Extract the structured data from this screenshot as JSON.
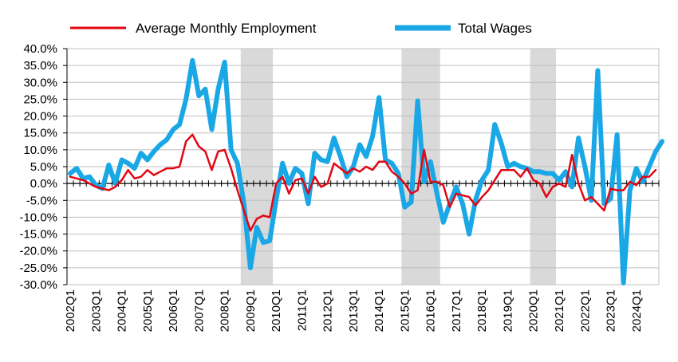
{
  "chart_data": {
    "type": "line",
    "title": "",
    "xlabel": "",
    "ylabel": "",
    "ylim": [
      -30,
      40
    ],
    "yticks": [
      "40.0%",
      "35.0%",
      "30.0%",
      "25.0%",
      "20.0%",
      "15.0%",
      "10.0%",
      "5.0%",
      "0.0%",
      "-5.0%",
      "-10.0%",
      "-15.0%",
      "-20.0%",
      "-25.0%",
      "-30.0%"
    ],
    "ytick_values": [
      40,
      35,
      30,
      25,
      20,
      15,
      10,
      5,
      0,
      -5,
      -10,
      -15,
      -20,
      -25,
      -30
    ],
    "xtick_labels": [
      "2002Q1",
      "2003Q1",
      "2004Q1",
      "2005Q1",
      "2006Q1",
      "2007Q1",
      "2008Q1",
      "2009Q1",
      "2010Q1",
      "2011Q1",
      "2012Q1",
      "2013Q1",
      "2014Q1",
      "2015Q1",
      "2016Q1",
      "2017Q1",
      "2018Q1",
      "2019Q1",
      "2020Q1",
      "2021Q1",
      "2022Q1",
      "2023Q1",
      "2024Q1"
    ],
    "x_start": "2002Q1",
    "grid": "horizontal",
    "legend_position": "top",
    "recessions": [
      {
        "start": "2008Q4",
        "end": "2009Q4"
      },
      {
        "start": "2015Q1",
        "end": "2016Q2"
      },
      {
        "start": "2020Q1",
        "end": "2020Q4"
      }
    ],
    "recession_color": "#d9d9d9",
    "series": [
      {
        "name": "Average Monthly Employment",
        "color": "#e30613",
        "values": [
          2,
          1.5,
          1,
          0,
          -1,
          -1.5,
          -2,
          -1,
          1,
          4,
          1.5,
          2,
          4,
          2.5,
          3.5,
          4.5,
          4.5,
          5,
          12.5,
          14.5,
          11,
          9.5,
          4,
          9.5,
          10,
          4.5,
          -2,
          -8,
          -14,
          -10.5,
          -9.5,
          -10,
          0,
          2,
          -3,
          1,
          1.5,
          -3,
          2,
          -1,
          0,
          6,
          4.5,
          3,
          4.5,
          3.5,
          5,
          4,
          6.5,
          6.5,
          3.5,
          2,
          0,
          -3,
          -2,
          10,
          0.5,
          0.5,
          -0.5,
          -7,
          -3,
          -3.5,
          -4,
          -6.5,
          -4,
          -2,
          1,
          4,
          4,
          4,
          2,
          4.5,
          1,
          0,
          -4,
          -1,
          0,
          -1,
          8.5,
          0,
          -5,
          -4,
          -6,
          -8,
          -1.5,
          -2,
          -2,
          0.5,
          -0.5,
          2,
          2,
          4
        ]
      },
      {
        "name": "Total Wages",
        "color": "#1aa7e6",
        "values": [
          3,
          4.5,
          1.5,
          2,
          -0.5,
          -1.5,
          5.5,
          0,
          7,
          6,
          4.5,
          9,
          7,
          9.5,
          11.5,
          13,
          16,
          17.5,
          25,
          36.5,
          26,
          28,
          16,
          28,
          36,
          10,
          6,
          -6,
          -25,
          -13,
          -17.5,
          -17,
          -5,
          6,
          0,
          4.5,
          3,
          -6,
          9,
          7,
          6.5,
          13.5,
          8,
          2,
          5,
          11.5,
          8,
          14,
          25.5,
          7,
          6,
          3,
          -7,
          -5.5,
          24.5,
          0.5,
          6.5,
          -3,
          -11.5,
          -6,
          -1,
          -6,
          -15,
          -5,
          1,
          4,
          17.5,
          12,
          5,
          6,
          5,
          4.5,
          3.5,
          3.5,
          3,
          3,
          1,
          3.5,
          -1,
          13.5,
          5,
          -5,
          33.5,
          -6,
          -4.5,
          14.5,
          -29.5,
          -2,
          4.5,
          0.5,
          5,
          9.5,
          12.5
        ]
      }
    ]
  }
}
